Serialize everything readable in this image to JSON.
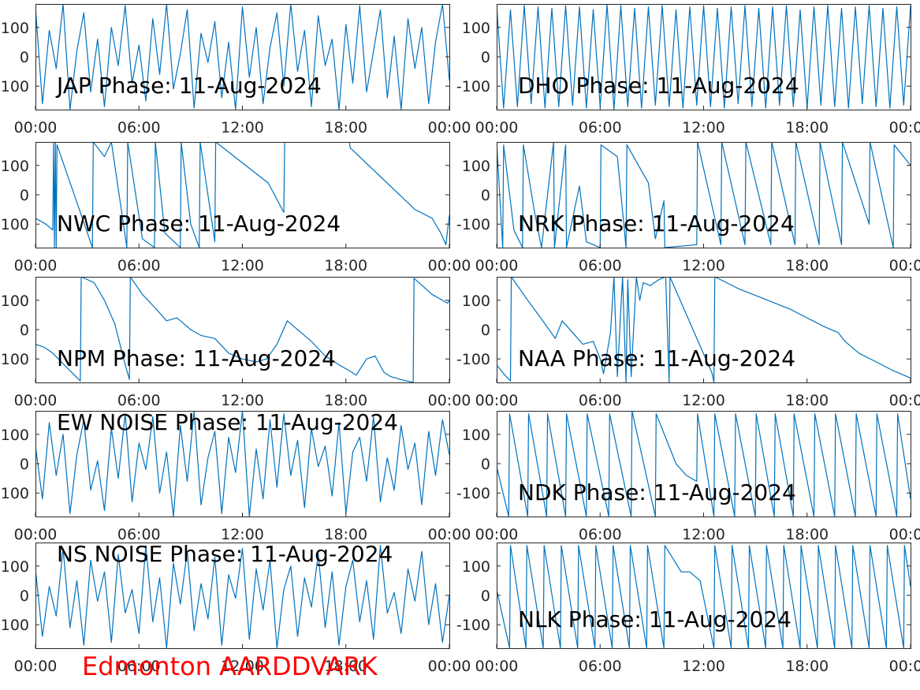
{
  "footer": {
    "station_label": "Edmonton AARDDVARK",
    "label_color": "#ff0000"
  },
  "style": {
    "trace_color": "#0072BD",
    "axis_color": "#262626",
    "background": "#ffffff"
  },
  "chart_data": [
    {
      "type": "line",
      "title": "JAP Phase: 11-Aug-2024",
      "x_tick_labels": [
        "00:00",
        "06:00",
        "12:00",
        "18:00",
        "00:00"
      ],
      "y_tick_labels": [
        "100",
        "0",
        "100"
      ],
      "ylim": [
        -180,
        180
      ],
      "x": [
        0,
        0.4,
        0.8,
        1.2,
        1.6,
        2,
        2.4,
        2.8,
        3.2,
        3.6,
        4,
        4.4,
        4.8,
        5.2,
        5.6,
        6,
        6.4,
        6.8,
        7.2,
        7.6,
        8,
        8.4,
        8.8,
        9.2,
        9.6,
        10,
        10.4,
        10.8,
        11.2,
        11.6,
        12,
        12.4,
        12.8,
        13.2,
        13.6,
        14,
        14.4,
        14.8,
        15.2,
        15.6,
        16,
        16.4,
        16.8,
        17.2,
        17.6,
        18,
        18.4,
        18.8,
        19.2,
        19.6,
        20,
        20.4,
        20.8,
        21.2,
        21.6,
        22,
        22.4,
        22.8,
        23.2,
        23.6,
        24
      ],
      "series": [
        {
          "values": [
            170,
            -160,
            90,
            -40,
            180,
            -180,
            20,
            150,
            -120,
            60,
            -170,
            100,
            -30,
            175,
            -90,
            40,
            -150,
            130,
            -60,
            180,
            -110,
            10,
            160,
            -175,
            80,
            -20,
            120,
            -140,
            50,
            -180,
            170,
            -70,
            100,
            -160,
            30,
            150,
            -100,
            180,
            -50,
            90,
            -170,
            140,
            -30,
            60,
            -180,
            110,
            -90,
            175,
            -120,
            20,
            160,
            -140,
            70,
            -180,
            130,
            -40,
            100,
            -160,
            50,
            180,
            -80
          ]
        }
      ]
    },
    {
      "type": "line",
      "title": "DHO Phase: 11-Aug-2024",
      "x_tick_labels": [
        "00:00",
        "06:00",
        "12:00",
        "18:00",
        "00:00"
      ],
      "y_tick_labels": [
        "100",
        "0",
        "-100"
      ],
      "ylim": [
        -180,
        180
      ],
      "x": [
        0,
        0.4,
        0.8,
        1.2,
        1.6,
        2,
        2.4,
        2.8,
        3.2,
        3.6,
        4,
        4.4,
        4.8,
        5.2,
        5.6,
        6,
        6.4,
        6.8,
        7.2,
        7.6,
        8,
        8.4,
        8.8,
        9.2,
        9.6,
        10,
        10.4,
        10.8,
        11.2,
        11.6,
        12,
        12.4,
        12.8,
        13.2,
        13.6,
        14,
        14.4,
        14.8,
        15.2,
        15.6,
        16,
        16.4,
        16.8,
        17.2,
        17.6,
        18,
        18.4,
        18.8,
        19.2,
        19.6,
        20,
        20.4,
        20.8,
        21.2,
        21.6,
        22,
        22.4,
        22.8,
        23.2,
        23.6,
        24
      ],
      "series": [
        {
          "values": [
            175,
            -175,
            160,
            -170,
            175,
            -160,
            170,
            -175,
            165,
            -170,
            175,
            -165,
            170,
            -175,
            160,
            -170,
            180,
            -180,
            175,
            -170,
            165,
            -175,
            170,
            -165,
            175,
            -170,
            160,
            -175,
            170,
            -165,
            175,
            -170,
            165,
            -175,
            170,
            -160,
            175,
            -170,
            165,
            -175,
            170,
            -165,
            175,
            -170,
            160,
            -175,
            170,
            -165,
            175,
            -170,
            165,
            -175,
            170,
            -160,
            175,
            -170,
            165,
            -175,
            170,
            -165,
            175
          ]
        }
      ]
    },
    {
      "type": "line",
      "title": "NWC Phase: 11-Aug-2024",
      "x_tick_labels": [
        "00:00",
        "06:00",
        "12:00",
        "18:00",
        "00:00"
      ],
      "y_tick_labels": [
        "100",
        "0",
        "100"
      ],
      "ylim": [
        -180,
        180
      ],
      "x": [
        0,
        0.6,
        1.0,
        1.05,
        1.1,
        1.15,
        1.2,
        1.25,
        2.6,
        3.3,
        3.35,
        4.0,
        4.4,
        5.3,
        5.35,
        6.2,
        6.9,
        6.95,
        7.5,
        8.4,
        8.45,
        9.0,
        9.5,
        9.55,
        10.4,
        10.45,
        13.5,
        14.4,
        14.45,
        18.2,
        18.25,
        22.0,
        23.0,
        23.5,
        23.8,
        24
      ],
      "series": [
        {
          "values": [
            -80,
            -100,
            -120,
            180,
            -180,
            180,
            -180,
            170,
            -60,
            -180,
            180,
            130,
            180,
            -180,
            180,
            -150,
            -180,
            180,
            -130,
            -180,
            180,
            -100,
            -180,
            180,
            -160,
            180,
            40,
            -60,
            180,
            180,
            160,
            -50,
            -80,
            -130,
            -170,
            -70
          ]
        }
      ]
    },
    {
      "type": "line",
      "title": "NRK Phase: 11-Aug-2024",
      "x_tick_labels": [
        "00:00",
        "06:00",
        "12:00",
        "18:00",
        "00:00"
      ],
      "y_tick_labels": [
        "100",
        "0",
        "-100"
      ],
      "ylim": [
        -180,
        180
      ],
      "x": [
        0,
        0.35,
        0.4,
        1.0,
        1.5,
        1.55,
        2.2,
        2.6,
        3.3,
        3.35,
        4.0,
        4.05,
        4.8,
        5.2,
        6.0,
        6.05,
        7.0,
        7.5,
        7.55,
        8.8,
        9.2,
        9.7,
        9.75,
        11.6,
        11.65,
        13.0,
        13.05,
        14.4,
        14.45,
        15.9,
        15.95,
        17.3,
        17.35,
        18.7,
        18.75,
        20.0,
        20.05,
        21.6,
        21.65,
        23.0,
        23.05,
        24
      ],
      "series": [
        {
          "values": [
            180,
            -180,
            170,
            -120,
            -180,
            170,
            -60,
            -180,
            180,
            -180,
            170,
            -180,
            30,
            -160,
            -180,
            170,
            130,
            -180,
            170,
            40,
            -150,
            -20,
            -180,
            -170,
            180,
            -170,
            180,
            -170,
            180,
            -170,
            180,
            -170,
            180,
            -170,
            180,
            -170,
            180,
            -100,
            180,
            -180,
            170,
            100
          ]
        }
      ]
    },
    {
      "type": "line",
      "title": "NPM Phase: 11-Aug-2024",
      "x_tick_labels": [
        "00:00",
        "06:00",
        "12:00",
        "18:00",
        "00:00"
      ],
      "y_tick_labels": [
        "100",
        "0",
        "100"
      ],
      "ylim": [
        -180,
        180
      ],
      "x": [
        0,
        0.5,
        1.0,
        1.5,
        2.0,
        2.6,
        2.65,
        3.4,
        4.0,
        4.6,
        5.2,
        5.45,
        5.5,
        6.2,
        7.0,
        7.6,
        8.2,
        9.0,
        9.6,
        10.4,
        11.2,
        12.0,
        12.8,
        13.4,
        14.0,
        14.6,
        15.2,
        16.0,
        16.8,
        17.6,
        18.2,
        18.6,
        19.2,
        19.7,
        20.2,
        20.6,
        21.2,
        21.9,
        21.95,
        23.0,
        23.9,
        24
      ],
      "series": [
        {
          "values": [
            -50,
            -60,
            -80,
            -110,
            -140,
            -175,
            180,
            160,
            100,
            20,
            -120,
            -170,
            180,
            120,
            70,
            30,
            40,
            0,
            -20,
            -30,
            -80,
            -100,
            -110,
            -100,
            -50,
            30,
            0,
            -40,
            -90,
            -120,
            -140,
            -155,
            -100,
            -90,
            -145,
            -160,
            -170,
            -180,
            175,
            120,
            90,
            100
          ]
        }
      ]
    },
    {
      "type": "line",
      "title": "NAA Phase: 11-Aug-2024",
      "x_tick_labels": [
        "00:00",
        "06:00",
        "12:00",
        "18:00",
        "00:00"
      ],
      "y_tick_labels": [
        "100",
        "0",
        "-100"
      ],
      "ylim": [
        -180,
        180
      ],
      "x": [
        0,
        0.4,
        0.8,
        0.85,
        1.8,
        2.8,
        3.4,
        3.8,
        4.4,
        5.0,
        5.6,
        6.0,
        6.2,
        6.6,
        6.8,
        7.0,
        7.3,
        7.5,
        7.6,
        7.8,
        8.1,
        8.3,
        8.5,
        8.9,
        9.4,
        9.8,
        10.0,
        10.05,
        12.5,
        12.6,
        12.65,
        14.0,
        17.0,
        19.0,
        19.8,
        20.2,
        21.0,
        22.0,
        23.0,
        24
      ],
      "series": [
        {
          "values": [
            -120,
            -150,
            -175,
            180,
            100,
            20,
            -30,
            30,
            -10,
            -50,
            -40,
            -100,
            -150,
            -10,
            180,
            -160,
            180,
            -180,
            170,
            -160,
            180,
            100,
            160,
            150,
            170,
            180,
            -180,
            180,
            -150,
            -180,
            180,
            140,
            70,
            10,
            -10,
            -40,
            -80,
            -110,
            -140,
            -165
          ]
        }
      ]
    },
    {
      "type": "line",
      "title": "EW NOISE Phase: 11-Aug-2024",
      "x_tick_labels": [
        "00:00",
        "06:00",
        "12:00",
        "18:00",
        "00:00"
      ],
      "y_tick_labels": [
        "100",
        "0",
        "100"
      ],
      "ylim": [
        -180,
        180
      ],
      "x": [
        0,
        0.4,
        0.8,
        1.2,
        1.6,
        2,
        2.4,
        2.8,
        3.2,
        3.6,
        4,
        4.4,
        4.8,
        5.2,
        5.6,
        6,
        6.4,
        6.8,
        7.2,
        7.6,
        8,
        8.4,
        8.8,
        9.2,
        9.6,
        10,
        10.4,
        10.8,
        11.2,
        11.6,
        12,
        12.4,
        12.8,
        13.2,
        13.6,
        14,
        14.4,
        14.8,
        15.2,
        15.6,
        16,
        16.4,
        16.8,
        17.2,
        17.6,
        18,
        18.4,
        18.8,
        19.2,
        19.6,
        20,
        20.4,
        20.8,
        21.2,
        21.6,
        22,
        22.4,
        22.8,
        23.2,
        23.6,
        24
      ],
      "series": [
        {
          "values": [
            60,
            -120,
            140,
            -40,
            100,
            -170,
            30,
            150,
            -90,
            10,
            -160,
            120,
            -50,
            170,
            -130,
            70,
            -20,
            160,
            -100,
            40,
            -180,
            130,
            -60,
            180,
            -140,
            20,
            110,
            -170,
            90,
            -30,
            180,
            -180,
            50,
            -120,
            150,
            -80,
            170,
            -40,
            80,
            -150,
            120,
            -10,
            60,
            -110,
            140,
            -170,
            40,
            90,
            -60,
            160,
            -130,
            20,
            -90,
            130,
            -20,
            70,
            -140,
            110,
            -40,
            150,
            30
          ]
        }
      ]
    },
    {
      "type": "line",
      "title": "NDK Phase: 11-Aug-2024",
      "x_tick_labels": [
        "00:00",
        "06:00",
        "12:00",
        "18:00",
        "00:00"
      ],
      "y_tick_labels": [
        "100",
        "0",
        "-100"
      ],
      "ylim": [
        -180,
        180
      ],
      "x": [
        0,
        0.7,
        0.75,
        1.8,
        1.85,
        2.9,
        2.95,
        4.0,
        4.05,
        5.2,
        5.25,
        6.5,
        6.55,
        7.8,
        7.85,
        9.2,
        9.25,
        10.4,
        11.0,
        11.6,
        11.65,
        12.6,
        12.65,
        13.8,
        13.85,
        15.0,
        15.05,
        16.1,
        16.15,
        17.2,
        17.25,
        18.4,
        18.45,
        19.6,
        19.65,
        20.8,
        20.85,
        22.0,
        22.05,
        23.2,
        23.25,
        24
      ],
      "series": [
        {
          "values": [
            -10,
            -180,
            170,
            -180,
            170,
            -180,
            170,
            -180,
            170,
            -180,
            170,
            -180,
            170,
            -180,
            180,
            -180,
            170,
            0,
            -40,
            -60,
            170,
            -180,
            170,
            -180,
            170,
            -180,
            170,
            -180,
            170,
            -180,
            170,
            -180,
            170,
            -180,
            170,
            -180,
            170,
            -180,
            170,
            -180,
            170,
            -120
          ]
        }
      ]
    },
    {
      "type": "line",
      "title": "NS NOISE Phase: 11-Aug-2024",
      "x_tick_labels": [
        "00:00",
        "06:00",
        "12:00",
        "18:00",
        "00:00"
      ],
      "y_tick_labels": [
        "100",
        "0",
        "100"
      ],
      "ylim": [
        -180,
        180
      ],
      "x": [
        0,
        0.4,
        0.8,
        1.2,
        1.6,
        2,
        2.4,
        2.8,
        3.2,
        3.6,
        4,
        4.4,
        4.8,
        5.2,
        5.6,
        6,
        6.4,
        6.8,
        7.2,
        7.6,
        8,
        8.4,
        8.8,
        9.2,
        9.6,
        10,
        10.4,
        10.8,
        11.2,
        11.6,
        12,
        12.4,
        12.8,
        13.2,
        13.6,
        14,
        14.4,
        14.8,
        15.2,
        15.6,
        16,
        16.4,
        16.8,
        17.2,
        17.6,
        18,
        18.4,
        18.8,
        19.2,
        19.6,
        20,
        20.4,
        20.8,
        21.2,
        21.6,
        22,
        22.4,
        22.8,
        23.2,
        23.6,
        24
      ],
      "series": [
        {
          "values": [
            90,
            -140,
            30,
            -70,
            160,
            -110,
            50,
            -170,
            120,
            -20,
            80,
            -160,
            140,
            -60,
            20,
            -130,
            170,
            -90,
            60,
            -180,
            110,
            -30,
            150,
            -120,
            40,
            -80,
            130,
            -170,
            70,
            -10,
            160,
            -150,
            90,
            -50,
            120,
            -180,
            20,
            100,
            -140,
            60,
            -40,
            140,
            -110,
            80,
            -170,
            30,
            120,
            -90,
            50,
            -150,
            170,
            -60,
            10,
            -130,
            90,
            -20,
            150,
            -100,
            40,
            -160,
            0
          ]
        }
      ]
    },
    {
      "type": "line",
      "title": "NLK Phase: 11-Aug-2024",
      "x_tick_labels": [
        "00:00",
        "06:00",
        "12:00",
        "18:00",
        "00:00"
      ],
      "y_tick_labels": [
        "100",
        "0",
        "-100"
      ],
      "ylim": [
        -180,
        180
      ],
      "x": [
        0,
        0.75,
        0.8,
        1.7,
        1.75,
        2.7,
        2.75,
        3.7,
        3.75,
        4.7,
        4.75,
        5.7,
        5.75,
        6.7,
        6.75,
        7.7,
        7.75,
        8.7,
        8.75,
        9.7,
        9.75,
        10.7,
        11.2,
        11.8,
        12.6,
        12.65,
        13.6,
        13.65,
        14.6,
        14.65,
        15.6,
        15.65,
        16.6,
        16.65,
        17.6,
        17.65,
        18.6,
        18.65,
        19.6,
        19.65,
        20.6,
        20.65,
        21.6,
        21.65,
        22.6,
        22.65,
        23.6,
        23.65,
        24
      ],
      "series": [
        {
          "values": [
            20,
            -180,
            170,
            -180,
            170,
            -180,
            170,
            -180,
            170,
            -180,
            170,
            -180,
            170,
            -180,
            170,
            -180,
            170,
            -180,
            170,
            -180,
            170,
            80,
            80,
            50,
            -180,
            170,
            -180,
            170,
            -180,
            170,
            -180,
            170,
            -180,
            170,
            -180,
            170,
            -180,
            170,
            -180,
            170,
            -180,
            170,
            -180,
            170,
            -180,
            170,
            -180,
            170,
            30
          ]
        }
      ]
    }
  ]
}
